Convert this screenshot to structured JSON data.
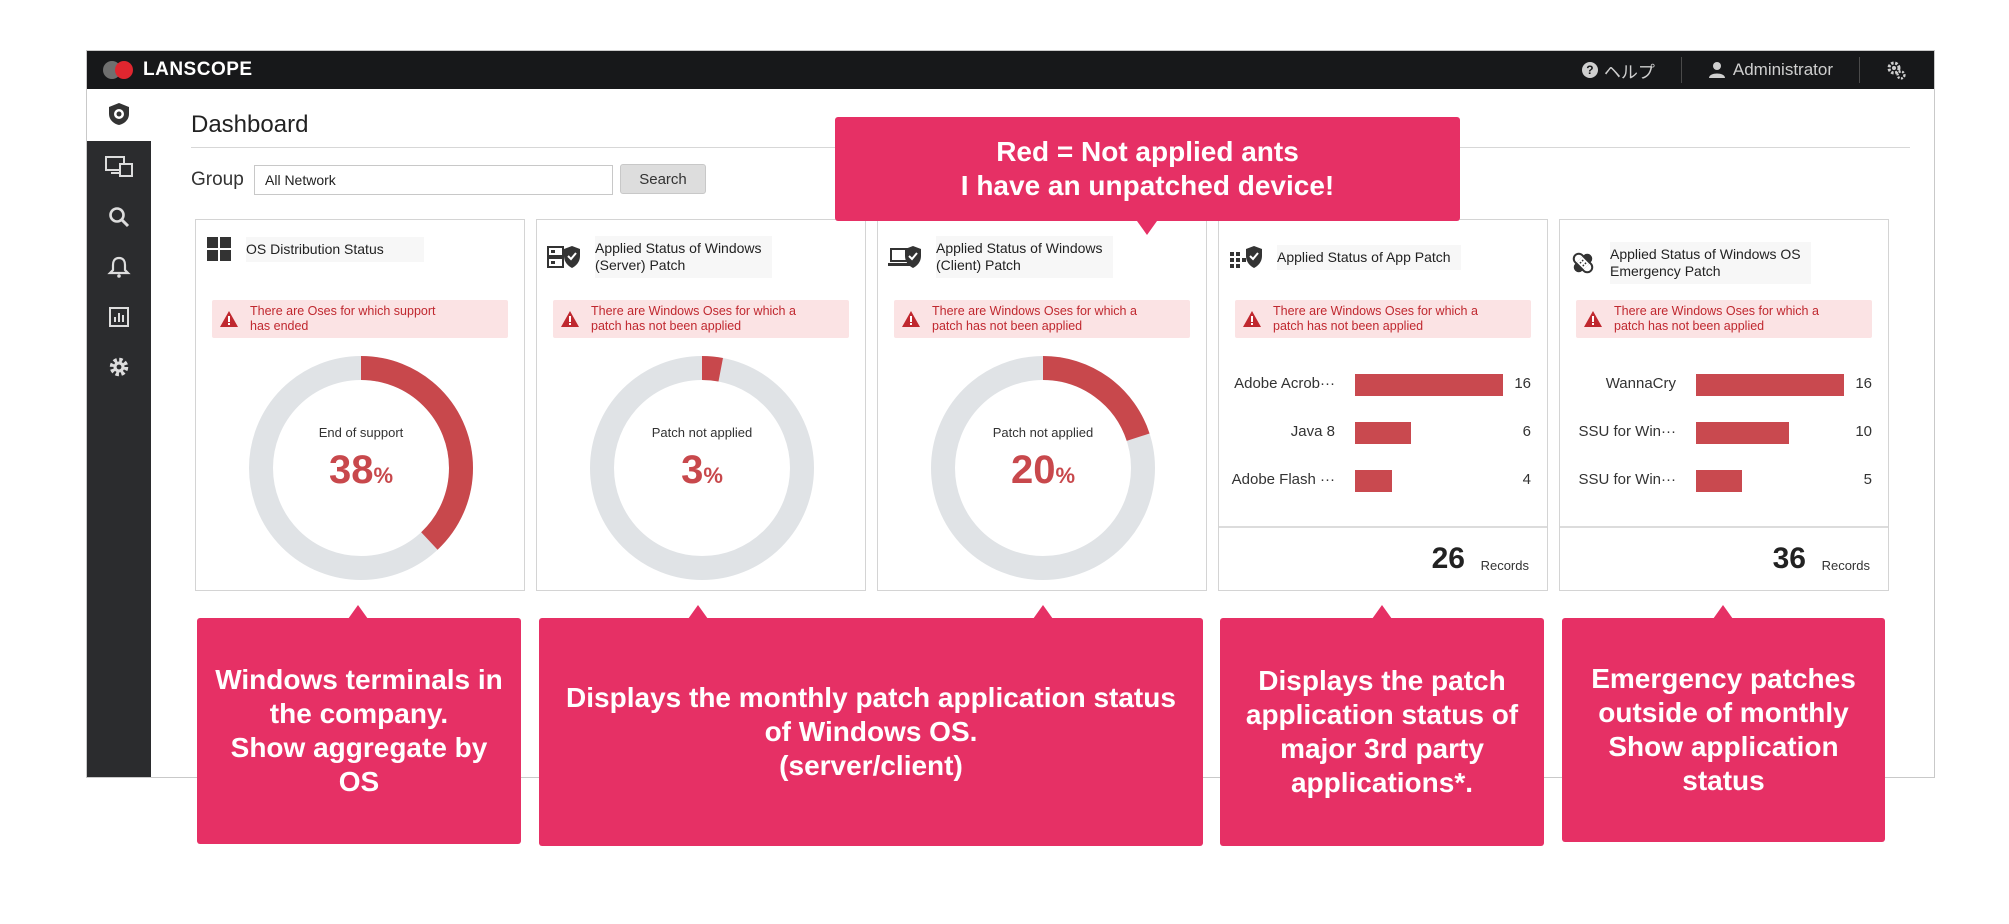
{
  "app": {
    "brand": "LANSCOPE",
    "help_label": "ヘルプ",
    "user_label": "Administrator"
  },
  "sidebar": {
    "items": [
      {
        "icon": "shield-icon"
      },
      {
        "icon": "devices-icon"
      },
      {
        "icon": "search-icon"
      },
      {
        "icon": "bell-icon"
      },
      {
        "icon": "report-icon"
      },
      {
        "icon": "gear-icon"
      }
    ]
  },
  "page": {
    "title": "Dashboard",
    "group_label": "Group",
    "group_value": "All Network",
    "search_label": "Search"
  },
  "cards": {
    "os": {
      "title": "OS Distribution Status",
      "alert_l1": "There are Oses for which support",
      "alert_l2": "has ended",
      "label": "End of support",
      "value": "38",
      "percent": 38,
      "unit": "%"
    },
    "server": {
      "title_l1": "Applied Status of Windows",
      "title_l2": "(Server) Patch",
      "alert_l1": "There are Windows Oses for which a",
      "alert_l2": "patch has not been applied",
      "label": "Patch not applied",
      "value": "3",
      "percent": 3,
      "unit": "%"
    },
    "client": {
      "title_l1": "Applied Status of Windows",
      "title_l2": "(Client) Patch",
      "alert_l1": "There are Windows Oses for which a",
      "alert_l2": "patch has not been applied",
      "label": "Patch not applied",
      "value": "20",
      "percent": 20,
      "unit": "%"
    },
    "app": {
      "title": "Applied Status of App Patch",
      "alert_l1": "There are Windows Oses for which a",
      "alert_l2": "patch has not been applied",
      "rows": [
        {
          "name": "Adobe Acrob···",
          "value": "16",
          "n": 16
        },
        {
          "name": "Java 8",
          "value": "6",
          "n": 6
        },
        {
          "name": "Adobe Flash ···",
          "value": "4",
          "n": 4
        }
      ],
      "total": "26",
      "total_label": "Records"
    },
    "emergency": {
      "title_l1": "Applied Status of Windows OS",
      "title_l2": "Emergency Patch",
      "alert_l1": "There are Windows Oses for which a",
      "alert_l2": "patch has not been applied",
      "rows": [
        {
          "name": "WannaCry",
          "value": "16",
          "n": 16
        },
        {
          "name": "SSU for Win···",
          "value": "10",
          "n": 10
        },
        {
          "name": "SSU for Win···",
          "value": "5",
          "n": 5
        }
      ],
      "total": "36",
      "total_label": "Records"
    }
  },
  "colors": {
    "accent": "#e63065",
    "donut_fill": "#c8484c",
    "donut_track": "#e0e3e6"
  },
  "callouts": {
    "top": [
      "Red = Not applied ants",
      "I have an unpatched device!"
    ],
    "os": [
      "Windows terminals in",
      "the company.",
      "Show aggregate by",
      "OS"
    ],
    "monthly": [
      "Displays the monthly patch application status",
      "of Windows OS.",
      "(server/client)"
    ],
    "app": [
      "Displays the patch",
      "application status of",
      "major 3rd party",
      "applications*."
    ],
    "emergency": [
      "Emergency patches",
      "outside of monthly",
      "Show application",
      "status"
    ]
  }
}
